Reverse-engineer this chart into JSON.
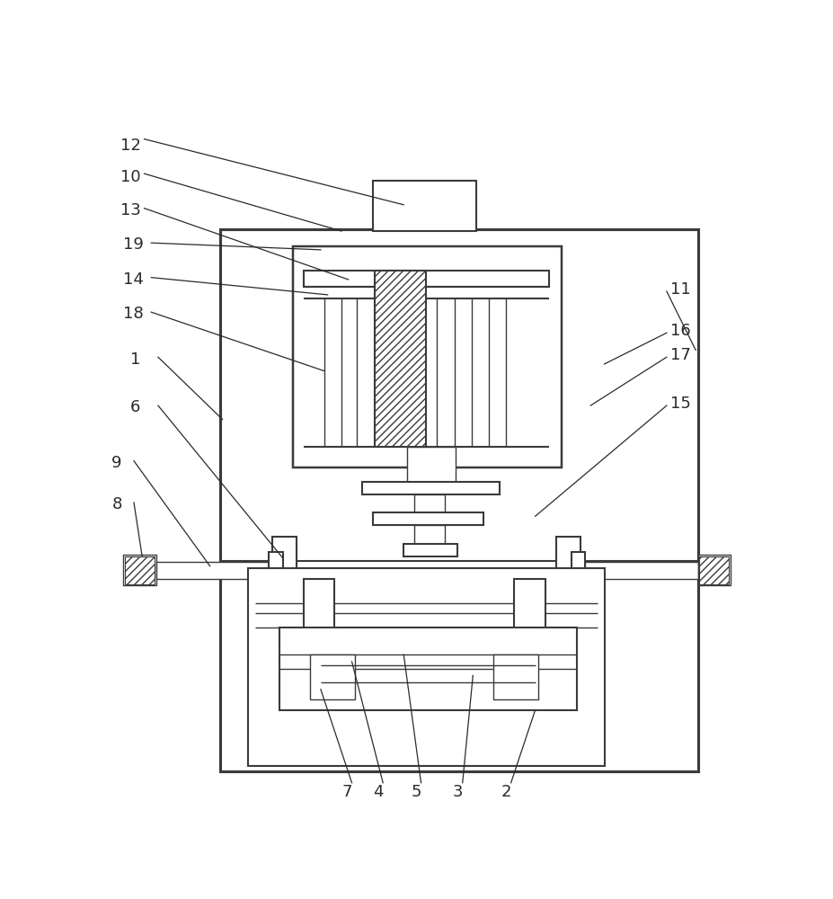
{
  "bg_color": "#ffffff",
  "line_color": "#3a3a3a",
  "fig_width": 9.27,
  "fig_height": 10.0,
  "lw_main": 1.5,
  "lw_thin": 1.0
}
